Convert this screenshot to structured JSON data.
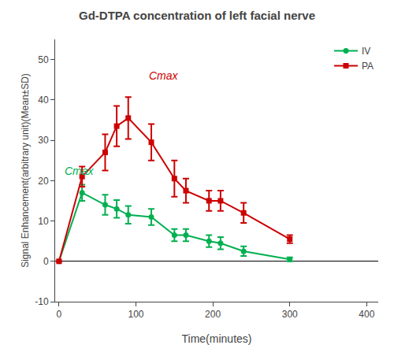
{
  "chart_data": {
    "type": "line",
    "title": "Gd-DTPA concentration of left facial nerve",
    "xlabel": "Time(minutes)",
    "ylabel": "Signal Enhancement(arbitrary unit)(Mean±SD)",
    "xlim": [
      -5,
      415
    ],
    "ylim": [
      -10,
      55
    ],
    "xticks": [
      0,
      100,
      200,
      300,
      400
    ],
    "yticks": [
      -10,
      0,
      10,
      20,
      30,
      40,
      50
    ],
    "grid": false,
    "legend": "upper right",
    "series": [
      {
        "name": "IV",
        "color": "#00b050",
        "marker": "circle",
        "x": [
          0,
          30,
          60,
          75,
          90,
          120,
          150,
          165,
          195,
          210,
          240,
          300
        ],
        "values": [
          0,
          17.0,
          14.0,
          13.0,
          11.5,
          11.0,
          6.5,
          6.5,
          5.0,
          4.5,
          2.5,
          0.5
        ],
        "error": [
          0.0,
          2.0,
          2.5,
          2.2,
          2.2,
          2.0,
          1.5,
          1.5,
          1.5,
          1.5,
          1.2,
          0.5
        ]
      },
      {
        "name": "PA",
        "color": "#cc0000",
        "marker": "square",
        "x": [
          0,
          30,
          60,
          75,
          90,
          120,
          150,
          165,
          195,
          210,
          240,
          300
        ],
        "values": [
          0,
          21.0,
          27.0,
          33.5,
          35.5,
          29.5,
          20.5,
          17.5,
          15.0,
          15.0,
          12.0,
          5.5
        ],
        "error": [
          0.0,
          2.5,
          4.5,
          5.0,
          5.2,
          4.5,
          4.5,
          3.0,
          2.5,
          2.5,
          2.5,
          1.0
        ]
      }
    ],
    "annotations": [
      {
        "text": "Cmax",
        "x": 115,
        "y": 44,
        "series": "PA"
      },
      {
        "text": "Cmax",
        "x": 5,
        "y": 20.5,
        "series": "IV"
      }
    ]
  }
}
